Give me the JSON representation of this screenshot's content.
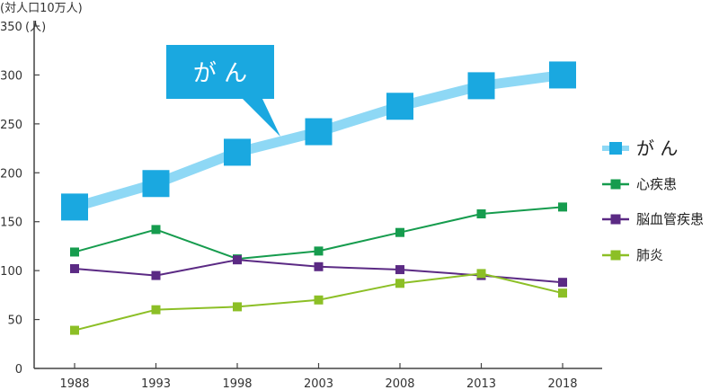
{
  "chart_data": {
    "type": "line",
    "ylabel_line1": "(対人口10万人)",
    "ylabel_line2": "(人)",
    "ylim": [
      0,
      350
    ],
    "yticks": [
      0,
      50,
      100,
      150,
      200,
      250,
      300,
      350
    ],
    "x": [
      "1988",
      "1993",
      "1998",
      "2003",
      "2008",
      "2013",
      "2018"
    ],
    "grid": false,
    "legend_position": "right",
    "callout_label": "が ん",
    "series": [
      {
        "name": "が ん",
        "color": "#8ed8f5",
        "marker_color": "#1aa8e0",
        "values": [
          165,
          189,
          221,
          242,
          268,
          289,
          300
        ]
      },
      {
        "name": "心疾患",
        "color": "#169c4e",
        "marker_color": "#169c4e",
        "values": [
          119,
          142,
          112,
          120,
          139,
          158,
          165
        ]
      },
      {
        "name": "脳血管疾患",
        "color": "#5b2a84",
        "marker_color": "#5b2a84",
        "values": [
          102,
          95,
          111,
          104,
          101,
          95,
          88
        ]
      },
      {
        "name": "肺炎",
        "color": "#8cbf26",
        "marker_color": "#8cbf26",
        "values": [
          39,
          60,
          63,
          70,
          87,
          97,
          77
        ]
      }
    ]
  }
}
